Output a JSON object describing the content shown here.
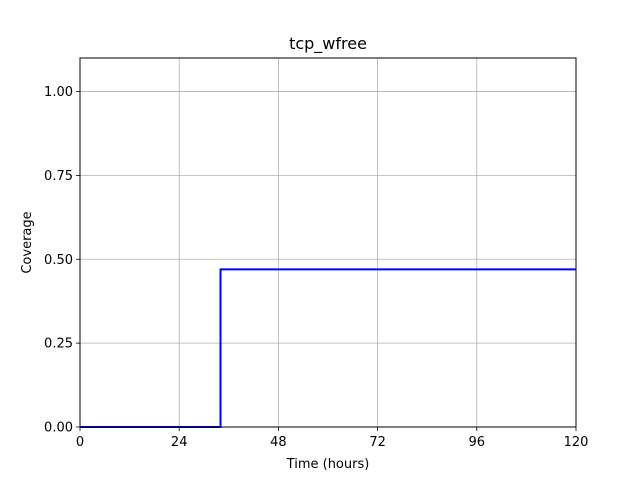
{
  "chart_data": {
    "type": "line",
    "title": "tcp_wfree",
    "xlabel": "Time (hours)",
    "ylabel": "Coverage",
    "xlim": [
      0,
      120
    ],
    "ylim": [
      0,
      1.1
    ],
    "xticks": [
      0,
      24,
      48,
      72,
      96,
      120
    ],
    "xtick_labels": [
      "0",
      "24",
      "48",
      "72",
      "96",
      "120"
    ],
    "yticks": [
      0.0,
      0.25,
      0.5,
      0.75,
      1.0
    ],
    "ytick_labels": [
      "0.00",
      "0.25",
      "0.50",
      "0.75",
      "1.00"
    ],
    "grid": true,
    "series": [
      {
        "color": "#0000ff",
        "step": true,
        "x": [
          0,
          34,
          34,
          120
        ],
        "y": [
          0.0,
          0.0,
          0.47,
          0.47
        ]
      }
    ]
  }
}
